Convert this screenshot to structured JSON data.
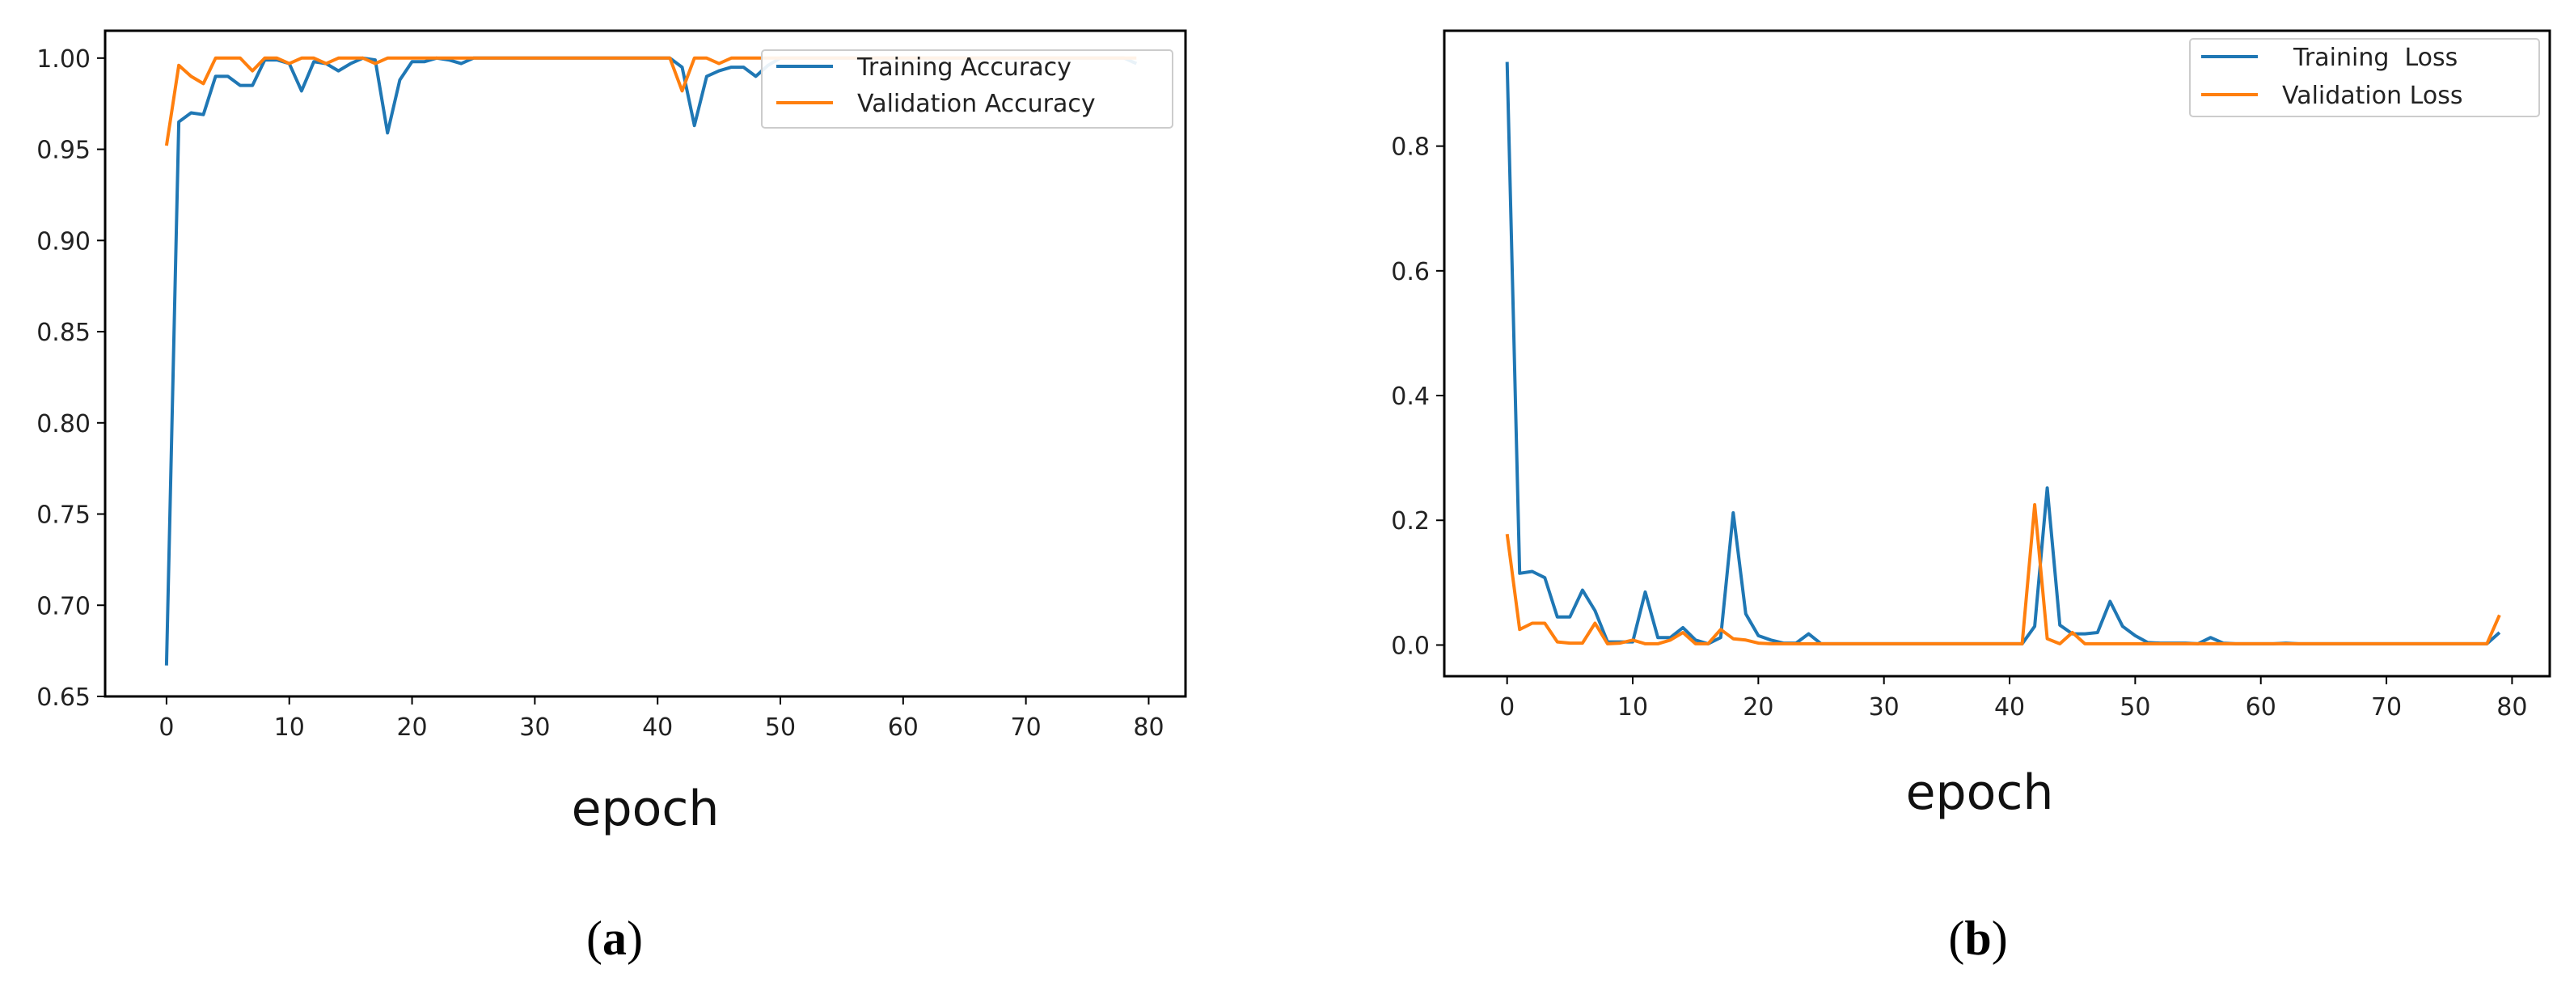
{
  "colors": {
    "training": "#1f77b4",
    "validation": "#ff7f0e"
  },
  "chart_data": [
    {
      "type": "line",
      "xlabel": "epoch",
      "panel_label": "a",
      "legend_position": "top-right",
      "xlim": [
        -5,
        83
      ],
      "ylim": [
        0.65,
        1.015
      ],
      "xticks": [
        0,
        10,
        20,
        30,
        40,
        50,
        60,
        70,
        80
      ],
      "yticks": [
        0.65,
        0.7,
        0.75,
        0.8,
        0.85,
        0.9,
        0.95,
        1.0
      ],
      "ytick_labels": [
        "0.65",
        "0.70",
        "0.75",
        "0.80",
        "0.85",
        "0.90",
        "0.95",
        "1.00"
      ],
      "series": [
        {
          "name": "Training Accuracy",
          "color": "#1f77b4",
          "x": [
            0,
            1,
            2,
            3,
            4,
            5,
            6,
            7,
            8,
            9,
            10,
            11,
            12,
            13,
            14,
            15,
            16,
            17,
            18,
            19,
            20,
            21,
            22,
            23,
            24,
            25,
            26,
            27,
            28,
            29,
            30,
            31,
            32,
            33,
            34,
            35,
            36,
            37,
            38,
            39,
            40,
            41,
            42,
            43,
            44,
            45,
            46,
            47,
            48,
            49,
            50,
            51,
            52,
            53,
            54,
            55,
            56,
            57,
            58,
            59,
            60,
            61,
            62,
            63,
            64,
            65,
            66,
            67,
            68,
            69,
            70,
            71,
            72,
            73,
            74,
            75,
            76,
            77,
            78,
            79
          ],
          "values": [
            0.667,
            0.965,
            0.97,
            0.969,
            0.99,
            0.99,
            0.985,
            0.985,
            0.999,
            0.999,
            0.997,
            0.982,
            0.998,
            0.997,
            0.993,
            0.997,
            1.0,
            0.999,
            0.959,
            0.988,
            0.998,
            0.998,
            1.0,
            0.999,
            0.997,
            1.0,
            1.0,
            1.0,
            1.0,
            1.0,
            1.0,
            1.0,
            1.0,
            1.0,
            1.0,
            1.0,
            1.0,
            1.0,
            1.0,
            1.0,
            1.0,
            1.0,
            0.995,
            0.963,
            0.99,
            0.993,
            0.995,
            0.995,
            0.99,
            0.996,
            1.0,
            1.0,
            1.0,
            1.0,
            1.0,
            1.0,
            1.0,
            1.0,
            1.0,
            1.0,
            1.0,
            1.0,
            1.0,
            1.0,
            1.0,
            1.0,
            1.0,
            1.0,
            1.0,
            1.0,
            1.0,
            1.0,
            1.0,
            1.0,
            1.0,
            1.0,
            1.0,
            1.0,
            1.0,
            0.997
          ]
        },
        {
          "name": "Validation Accuracy",
          "color": "#ff7f0e",
          "x": [
            0,
            1,
            2,
            3,
            4,
            5,
            6,
            7,
            8,
            9,
            10,
            11,
            12,
            13,
            14,
            15,
            16,
            17,
            18,
            19,
            20,
            21,
            22,
            23,
            24,
            25,
            26,
            27,
            28,
            29,
            30,
            31,
            32,
            33,
            34,
            35,
            36,
            37,
            38,
            39,
            40,
            41,
            42,
            43,
            44,
            45,
            46,
            47,
            48,
            49,
            50,
            51,
            52,
            53,
            54,
            55,
            56,
            57,
            58,
            59,
            60,
            61,
            62,
            63,
            64,
            65,
            66,
            67,
            68,
            69,
            70,
            71,
            72,
            73,
            74,
            75,
            76,
            77,
            78,
            79
          ],
          "values": [
            0.952,
            0.996,
            0.99,
            0.986,
            1.0,
            1.0,
            1.0,
            0.993,
            1.0,
            1.0,
            0.997,
            1.0,
            1.0,
            0.997,
            1.0,
            1.0,
            1.0,
            0.997,
            1.0,
            1.0,
            1.0,
            1.0,
            1.0,
            1.0,
            1.0,
            1.0,
            1.0,
            1.0,
            1.0,
            1.0,
            1.0,
            1.0,
            1.0,
            1.0,
            1.0,
            1.0,
            1.0,
            1.0,
            1.0,
            1.0,
            1.0,
            1.0,
            0.982,
            1.0,
            1.0,
            0.997,
            1.0,
            1.0,
            1.0,
            1.0,
            1.0,
            1.0,
            1.0,
            1.0,
            1.0,
            1.0,
            1.0,
            1.0,
            1.0,
            1.0,
            1.0,
            1.0,
            1.0,
            1.0,
            1.0,
            1.0,
            1.0,
            1.0,
            1.0,
            1.0,
            1.0,
            1.0,
            1.0,
            1.0,
            1.0,
            1.0,
            1.0,
            1.0,
            1.0,
            1.0
          ]
        }
      ]
    },
    {
      "type": "line",
      "xlabel": "epoch",
      "panel_label": "b",
      "legend_position": "top-right",
      "xlim": [
        -5,
        83
      ],
      "ylim": [
        -0.05,
        0.985
      ],
      "xticks": [
        0,
        10,
        20,
        30,
        40,
        50,
        60,
        70,
        80
      ],
      "yticks": [
        0.0,
        0.2,
        0.4,
        0.6,
        0.8
      ],
      "ytick_labels": [
        "0.0",
        "0.2",
        "0.4",
        "0.6",
        "0.8"
      ],
      "series": [
        {
          "name": "Training  Loss",
          "color": "#1f77b4",
          "x": [
            0,
            1,
            2,
            3,
            4,
            5,
            6,
            7,
            8,
            9,
            10,
            11,
            12,
            13,
            14,
            15,
            16,
            17,
            18,
            19,
            20,
            21,
            22,
            23,
            24,
            25,
            26,
            27,
            28,
            29,
            30,
            31,
            32,
            33,
            34,
            35,
            36,
            37,
            38,
            39,
            40,
            41,
            42,
            43,
            44,
            45,
            46,
            47,
            48,
            49,
            50,
            51,
            52,
            53,
            54,
            55,
            56,
            57,
            58,
            59,
            60,
            61,
            62,
            63,
            64,
            65,
            66,
            67,
            68,
            69,
            70,
            71,
            72,
            73,
            74,
            75,
            76,
            77,
            78,
            79
          ],
          "values": [
            0.935,
            0.115,
            0.118,
            0.108,
            0.045,
            0.045,
            0.088,
            0.055,
            0.005,
            0.005,
            0.005,
            0.085,
            0.012,
            0.012,
            0.028,
            0.008,
            0.002,
            0.012,
            0.212,
            0.05,
            0.015,
            0.008,
            0.003,
            0.003,
            0.018,
            0.002,
            0.002,
            0.002,
            0.002,
            0.002,
            0.002,
            0.002,
            0.002,
            0.002,
            0.002,
            0.002,
            0.002,
            0.002,
            0.002,
            0.002,
            0.002,
            0.002,
            0.03,
            0.252,
            0.032,
            0.018,
            0.018,
            0.02,
            0.07,
            0.03,
            0.015,
            0.004,
            0.003,
            0.003,
            0.003,
            0.002,
            0.012,
            0.003,
            0.002,
            0.002,
            0.002,
            0.002,
            0.003,
            0.002,
            0.002,
            0.002,
            0.002,
            0.002,
            0.002,
            0.002,
            0.002,
            0.002,
            0.002,
            0.002,
            0.002,
            0.002,
            0.002,
            0.002,
            0.002,
            0.02
          ]
        },
        {
          "name": "Validation Loss",
          "color": "#ff7f0e",
          "x": [
            0,
            1,
            2,
            3,
            4,
            5,
            6,
            7,
            8,
            9,
            10,
            11,
            12,
            13,
            14,
            15,
            16,
            17,
            18,
            19,
            20,
            21,
            22,
            23,
            24,
            25,
            26,
            27,
            28,
            29,
            30,
            31,
            32,
            33,
            34,
            35,
            36,
            37,
            38,
            39,
            40,
            41,
            42,
            43,
            44,
            45,
            46,
            47,
            48,
            49,
            50,
            51,
            52,
            53,
            54,
            55,
            56,
            57,
            58,
            59,
            60,
            61,
            62,
            63,
            64,
            65,
            66,
            67,
            68,
            69,
            70,
            71,
            72,
            73,
            74,
            75,
            76,
            77,
            78,
            79
          ],
          "values": [
            0.178,
            0.025,
            0.035,
            0.035,
            0.005,
            0.003,
            0.003,
            0.035,
            0.002,
            0.003,
            0.008,
            0.002,
            0.002,
            0.008,
            0.02,
            0.002,
            0.002,
            0.025,
            0.01,
            0.008,
            0.003,
            0.002,
            0.002,
            0.002,
            0.002,
            0.002,
            0.002,
            0.002,
            0.002,
            0.002,
            0.002,
            0.002,
            0.002,
            0.002,
            0.002,
            0.002,
            0.002,
            0.002,
            0.002,
            0.002,
            0.002,
            0.002,
            0.225,
            0.01,
            0.002,
            0.02,
            0.002,
            0.002,
            0.002,
            0.002,
            0.002,
            0.002,
            0.002,
            0.002,
            0.002,
            0.002,
            0.002,
            0.002,
            0.002,
            0.002,
            0.002,
            0.002,
            0.002,
            0.002,
            0.002,
            0.002,
            0.002,
            0.002,
            0.002,
            0.002,
            0.002,
            0.002,
            0.002,
            0.002,
            0.002,
            0.002,
            0.002,
            0.002,
            0.002,
            0.048
          ]
        }
      ]
    }
  ]
}
